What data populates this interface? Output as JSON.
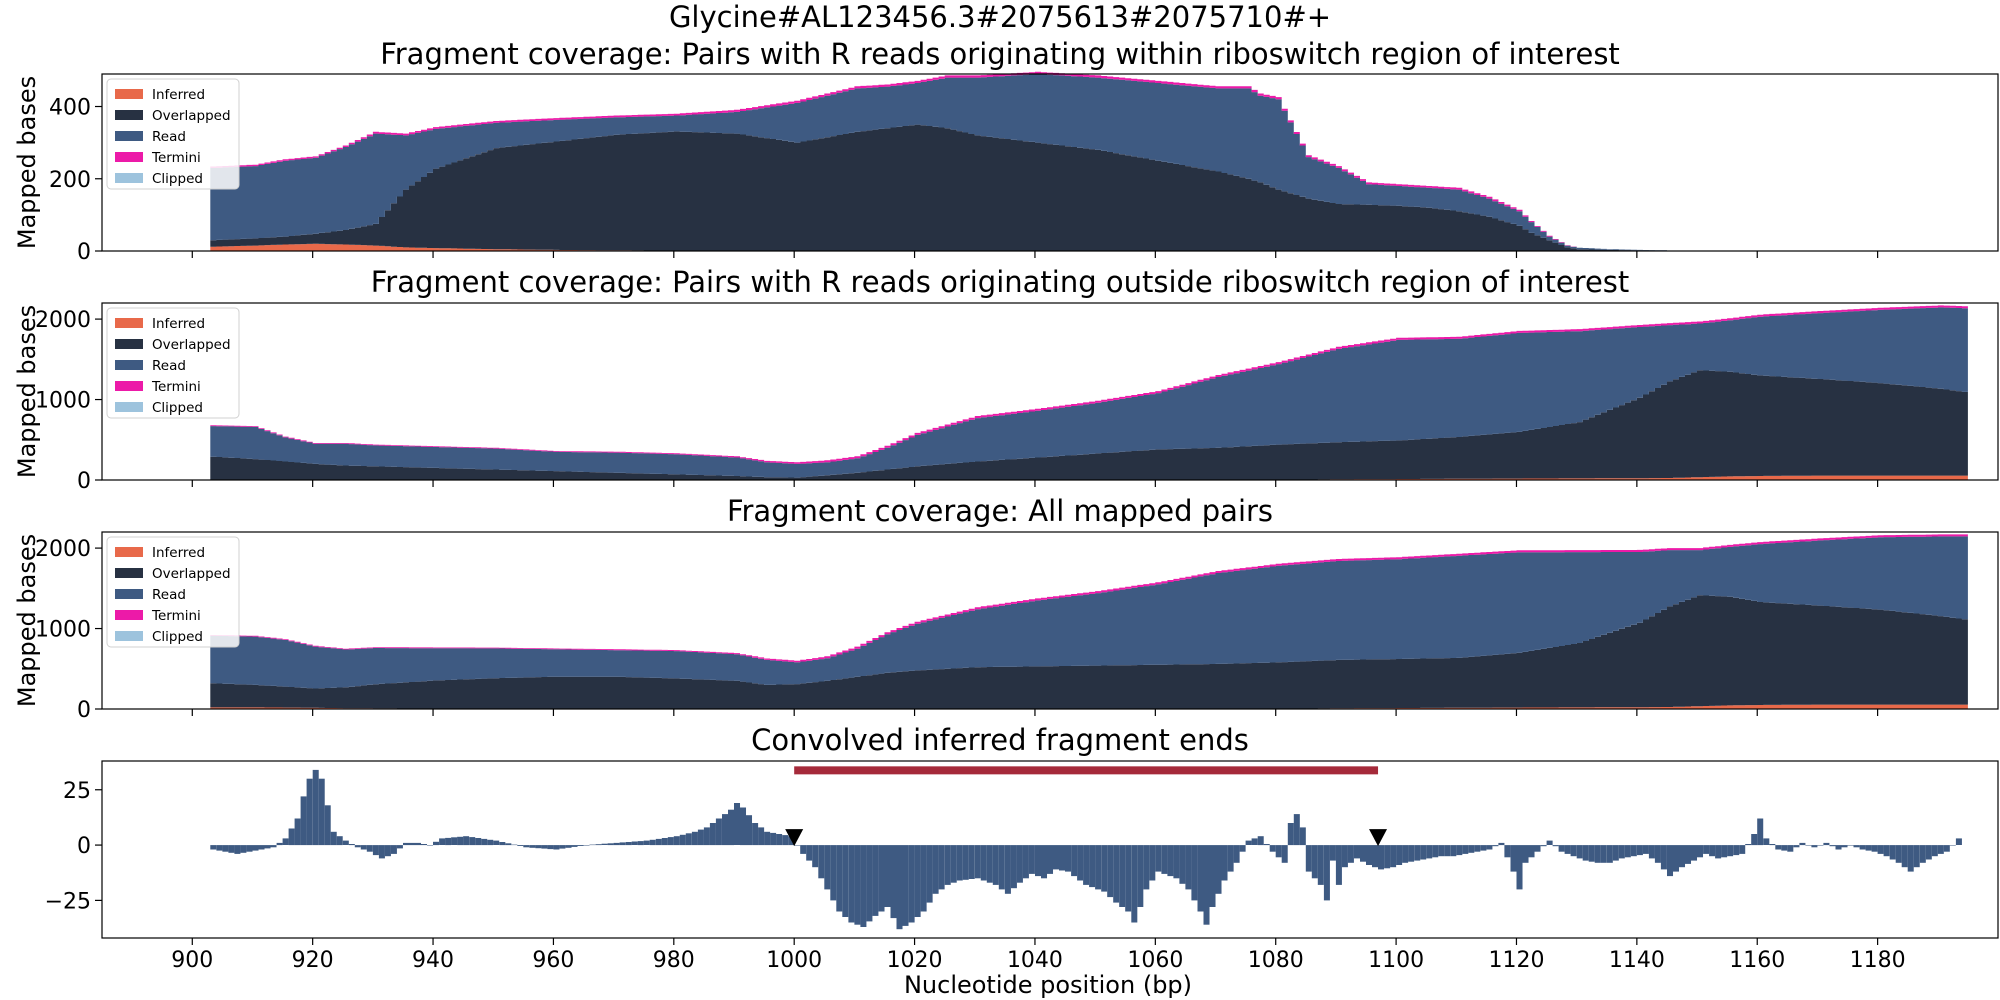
{
  "figure": {
    "suptitle": "Glycine#AL123456.3#2075613#2075710#+",
    "xlabel": "Nucleotide position (bp)",
    "xticks": [
      900,
      920,
      940,
      960,
      980,
      1000,
      1020,
      1040,
      1060,
      1080,
      1100,
      1120,
      1140,
      1160,
      1180
    ],
    "colors": {
      "inferred": "#e8694a",
      "overlapped": "#273142",
      "read": "#3e5a82",
      "termini": "#ec1aa8",
      "clipped": "#9dc3dd",
      "annotation_bar": "#a52a3a",
      "marker": "#000000"
    },
    "legend": {
      "placement": "upper left",
      "entries": [
        {
          "label": "Inferred",
          "color": "#e8694a"
        },
        {
          "label": "Overlapped",
          "color": "#273142"
        },
        {
          "label": "Read",
          "color": "#3e5a82"
        },
        {
          "label": "Termini",
          "color": "#ec1aa8"
        },
        {
          "label": "Clipped",
          "color": "#9dc3dd"
        }
      ]
    }
  },
  "chart_data": [
    {
      "type": "area",
      "title": "Fragment coverage: Pairs with R reads originating within riboswitch region of interest",
      "ylabel": "Mapped bases",
      "xlim": [
        885,
        1200
      ],
      "ylim": [
        0,
        490
      ],
      "yticks": [
        0,
        200,
        400
      ],
      "stacked": true,
      "x": [
        903,
        910,
        915,
        920,
        925,
        930,
        935,
        940,
        950,
        960,
        970,
        980,
        990,
        1000,
        1010,
        1015,
        1020,
        1025,
        1030,
        1040,
        1050,
        1060,
        1070,
        1075,
        1077,
        1080,
        1085,
        1090,
        1095,
        1100,
        1105,
        1110,
        1115,
        1120,
        1122,
        1125,
        1128,
        1130,
        1135,
        1140,
        1150,
        1160,
        1170,
        1180,
        1194
      ],
      "series": [
        {
          "name": "Inferred",
          "values": [
            12,
            15,
            18,
            20,
            18,
            15,
            10,
            8,
            5,
            3,
            2,
            1,
            0,
            0,
            0,
            0,
            0,
            0,
            0,
            0,
            0,
            0,
            0,
            0,
            0,
            0,
            0,
            0,
            0,
            0,
            0,
            0,
            0,
            0,
            0,
            0,
            0,
            0,
            0,
            0,
            0,
            0,
            0,
            0,
            0
          ]
        },
        {
          "name": "Overlapped",
          "values": [
            18,
            20,
            22,
            28,
            40,
            60,
            160,
            220,
            280,
            300,
            320,
            330,
            325,
            300,
            330,
            340,
            350,
            340,
            320,
            300,
            280,
            250,
            220,
            200,
            190,
            170,
            145,
            130,
            128,
            125,
            120,
            110,
            95,
            70,
            50,
            30,
            10,
            5,
            3,
            2,
            0,
            0,
            0,
            0,
            0
          ]
        },
        {
          "name": "Read",
          "values": [
            200,
            200,
            210,
            210,
            230,
            250,
            150,
            110,
            70,
            60,
            48,
            44,
            60,
            110,
            120,
            115,
            115,
            140,
            160,
            190,
            200,
            215,
            230,
            250,
            240,
            250,
            115,
            100,
            57,
            55,
            55,
            60,
            50,
            40,
            30,
            10,
            5,
            4,
            2,
            1,
            0,
            0,
            0,
            0,
            0
          ]
        },
        {
          "name": "Termini",
          "values": [
            4,
            4,
            4,
            4,
            4,
            5,
            5,
            5,
            5,
            5,
            5,
            5,
            6,
            6,
            6,
            6,
            6,
            6,
            6,
            6,
            6,
            6,
            6,
            6,
            6,
            6,
            5,
            5,
            5,
            5,
            5,
            5,
            5,
            4,
            3,
            2,
            1,
            0,
            0,
            0,
            0,
            0,
            0,
            0,
            0
          ]
        },
        {
          "name": "Clipped",
          "values": [
            0,
            0,
            0,
            0,
            0,
            0,
            0,
            0,
            0,
            0,
            0,
            0,
            0,
            0,
            0,
            0,
            0,
            0,
            0,
            0,
            0,
            0,
            0,
            0,
            0,
            0,
            0,
            0,
            0,
            0,
            0,
            0,
            0,
            0,
            0,
            0,
            0,
            0,
            0,
            0,
            0,
            0,
            0,
            0,
            0
          ]
        }
      ]
    },
    {
      "type": "area",
      "title": "Fragment coverage: Pairs with R reads originating outside riboswitch region of interest",
      "ylabel": "Mapped bases",
      "xlim": [
        885,
        1200
      ],
      "ylim": [
        0,
        2200
      ],
      "yticks": [
        0,
        1000,
        2000
      ],
      "stacked": true,
      "x": [
        903,
        910,
        915,
        920,
        925,
        930,
        940,
        950,
        960,
        970,
        980,
        990,
        995,
        1000,
        1005,
        1010,
        1015,
        1020,
        1030,
        1040,
        1050,
        1060,
        1070,
        1080,
        1090,
        1100,
        1110,
        1120,
        1130,
        1140,
        1145,
        1150,
        1155,
        1160,
        1170,
        1180,
        1190,
        1194
      ],
      "series": [
        {
          "name": "Inferred",
          "values": [
            0,
            0,
            0,
            0,
            0,
            0,
            0,
            0,
            0,
            0,
            0,
            0,
            0,
            0,
            0,
            0,
            0,
            0,
            0,
            0,
            0,
            0,
            0,
            0,
            10,
            12,
            15,
            18,
            20,
            22,
            25,
            35,
            45,
            50,
            55,
            55,
            55,
            55
          ]
        },
        {
          "name": "Overlapped",
          "values": [
            290,
            260,
            230,
            200,
            180,
            170,
            150,
            130,
            110,
            90,
            70,
            50,
            35,
            30,
            60,
            90,
            130,
            170,
            230,
            280,
            330,
            380,
            400,
            440,
            460,
            480,
            520,
            580,
            700,
            1000,
            1200,
            1330,
            1300,
            1250,
            1200,
            1150,
            1080,
            1040
          ]
        },
        {
          "name": "Read",
          "values": [
            380,
            400,
            300,
            250,
            270,
            260,
            260,
            260,
            240,
            250,
            250,
            230,
            185,
            170,
            160,
            180,
            270,
            390,
            540,
            580,
            630,
            700,
            880,
            1000,
            1160,
            1250,
            1220,
            1230,
            1130,
            880,
            700,
            580,
            640,
            730,
            820,
            910,
            1010,
            1040
          ]
        },
        {
          "name": "Termini",
          "values": [
            10,
            10,
            10,
            10,
            10,
            10,
            10,
            10,
            10,
            12,
            12,
            15,
            18,
            20,
            25,
            25,
            25,
            25,
            25,
            25,
            25,
            25,
            25,
            25,
            25,
            25,
            25,
            25,
            25,
            25,
            25,
            25,
            25,
            25,
            25,
            25,
            25,
            25
          ]
        },
        {
          "name": "Clipped",
          "values": [
            0,
            0,
            0,
            0,
            0,
            0,
            0,
            0,
            0,
            0,
            0,
            0,
            0,
            0,
            0,
            0,
            0,
            0,
            0,
            0,
            0,
            0,
            0,
            0,
            0,
            0,
            0,
            0,
            0,
            0,
            0,
            0,
            0,
            0,
            0,
            0,
            0,
            0
          ]
        }
      ]
    },
    {
      "type": "area",
      "title": "Fragment coverage: All mapped pairs",
      "ylabel": "Mapped bases",
      "xlim": [
        885,
        1200
      ],
      "ylim": [
        0,
        2200
      ],
      "yticks": [
        0,
        1000,
        2000
      ],
      "stacked": true,
      "x": [
        903,
        910,
        915,
        920,
        925,
        930,
        940,
        950,
        960,
        970,
        980,
        990,
        995,
        1000,
        1005,
        1010,
        1015,
        1020,
        1030,
        1040,
        1050,
        1060,
        1070,
        1080,
        1090,
        1100,
        1110,
        1120,
        1130,
        1140,
        1145,
        1150,
        1155,
        1160,
        1170,
        1180,
        1190,
        1194
      ],
      "series": [
        {
          "name": "Inferred",
          "values": [
            20,
            20,
            18,
            15,
            10,
            8,
            5,
            3,
            2,
            1,
            0,
            0,
            0,
            0,
            0,
            0,
            0,
            0,
            0,
            0,
            0,
            0,
            0,
            0,
            10,
            12,
            15,
            18,
            20,
            22,
            25,
            35,
            45,
            50,
            55,
            55,
            55,
            55
          ]
        },
        {
          "name": "Overlapped",
          "values": [
            300,
            280,
            260,
            240,
            260,
            300,
            350,
            380,
            400,
            400,
            380,
            350,
            300,
            310,
            350,
            400,
            450,
            480,
            520,
            530,
            540,
            550,
            560,
            580,
            600,
            610,
            620,
            680,
            800,
            1050,
            1250,
            1380,
            1350,
            1280,
            1230,
            1180,
            1100,
            1060
          ]
        },
        {
          "name": "Read",
          "values": [
            590,
            600,
            580,
            520,
            470,
            450,
            400,
            370,
            340,
            330,
            340,
            330,
            310,
            270,
            280,
            350,
            480,
            580,
            720,
            820,
            900,
            1000,
            1130,
            1200,
            1230,
            1240,
            1270,
            1250,
            1130,
            880,
            700,
            560,
            620,
            720,
            810,
            900,
            990,
            1030
          ]
        },
        {
          "name": "Termini",
          "values": [
            10,
            10,
            10,
            10,
            10,
            10,
            10,
            10,
            10,
            12,
            12,
            15,
            18,
            20,
            25,
            25,
            25,
            25,
            25,
            25,
            25,
            25,
            25,
            25,
            25,
            25,
            25,
            25,
            25,
            25,
            25,
            25,
            25,
            25,
            25,
            25,
            25,
            25
          ]
        },
        {
          "name": "Clipped",
          "values": [
            0,
            0,
            0,
            0,
            0,
            0,
            0,
            0,
            0,
            0,
            0,
            0,
            0,
            0,
            0,
            0,
            0,
            0,
            0,
            0,
            0,
            0,
            0,
            0,
            0,
            0,
            0,
            0,
            0,
            0,
            0,
            0,
            0,
            0,
            0,
            0,
            0,
            0
          ]
        }
      ]
    },
    {
      "type": "bar",
      "title": "Convolved inferred fragment ends",
      "ylabel": "",
      "xlim": [
        885,
        1200
      ],
      "ylim": [
        -42,
        38
      ],
      "yticks": [
        -25,
        0,
        25
      ],
      "x": [
        903,
        905,
        907,
        909,
        911,
        913,
        915,
        917,
        918,
        919,
        920,
        921,
        922,
        923,
        925,
        927,
        929,
        931,
        933,
        935,
        937,
        939,
        941,
        945,
        950,
        955,
        960,
        965,
        970,
        975,
        980,
        983,
        985,
        987,
        989,
        990,
        991,
        993,
        995,
        997,
        999,
        1001,
        1003,
        1005,
        1007,
        1009,
        1011,
        1013,
        1015,
        1017,
        1019,
        1021,
        1023,
        1025,
        1027,
        1030,
        1033,
        1035,
        1037,
        1039,
        1041,
        1043,
        1045,
        1048,
        1051,
        1053,
        1055,
        1056,
        1057,
        1058,
        1060,
        1063,
        1065,
        1067,
        1068,
        1069,
        1071,
        1073,
        1075,
        1077,
        1079,
        1081,
        1082,
        1083,
        1084,
        1085,
        1087,
        1088,
        1089,
        1090,
        1091,
        1093,
        1095,
        1097,
        1099,
        1101,
        1103,
        1105,
        1107,
        1109,
        1111,
        1113,
        1115,
        1117,
        1119,
        1120,
        1121,
        1123,
        1125,
        1127,
        1129,
        1131,
        1133,
        1135,
        1137,
        1139,
        1141,
        1143,
        1145,
        1147,
        1149,
        1151,
        1153,
        1155,
        1157,
        1159,
        1160,
        1161,
        1163,
        1165,
        1167,
        1169,
        1171,
        1173,
        1175,
        1177,
        1179,
        1181,
        1183,
        1185,
        1187,
        1189,
        1191,
        1193
      ],
      "values": [
        -2,
        -3,
        -4,
        -3,
        -2,
        -1,
        3,
        12,
        22,
        30,
        34,
        30,
        18,
        6,
        2,
        -1,
        -3,
        -6,
        -4,
        1,
        1,
        0,
        3,
        4,
        2,
        -1,
        -2,
        0,
        1,
        2,
        4,
        6,
        8,
        12,
        16,
        19,
        17,
        10,
        6,
        5,
        4,
        -4,
        -10,
        -20,
        -30,
        -35,
        -37,
        -32,
        -28,
        -38,
        -35,
        -30,
        -22,
        -18,
        -16,
        -15,
        -18,
        -22,
        -17,
        -13,
        -15,
        -11,
        -12,
        -18,
        -21,
        -26,
        -30,
        -35,
        -28,
        -20,
        -12,
        -15,
        -20,
        -30,
        -36,
        -28,
        -16,
        -8,
        2,
        4,
        -3,
        -8,
        10,
        14,
        8,
        -12,
        -18,
        -25,
        -7,
        -18,
        -10,
        -6,
        -9,
        -11,
        -10,
        -8,
        -7,
        -6,
        -5,
        -5,
        -4,
        -3,
        -2,
        1,
        -12,
        -20,
        -8,
        -3,
        2,
        -3,
        -5,
        -7,
        -8,
        -8,
        -6,
        -5,
        -4,
        -8,
        -14,
        -10,
        -7,
        -4,
        -6,
        -5,
        -4,
        5,
        12,
        3,
        -2,
        -3,
        1,
        -1,
        1,
        -2,
        0,
        -2,
        -3,
        -5,
        -8,
        -12,
        -8,
        -5,
        -3,
        3
      ]
    }
  ],
  "annotations": {
    "bar_range": [
      1000,
      1097
    ],
    "markers": [
      1000,
      1097
    ]
  }
}
